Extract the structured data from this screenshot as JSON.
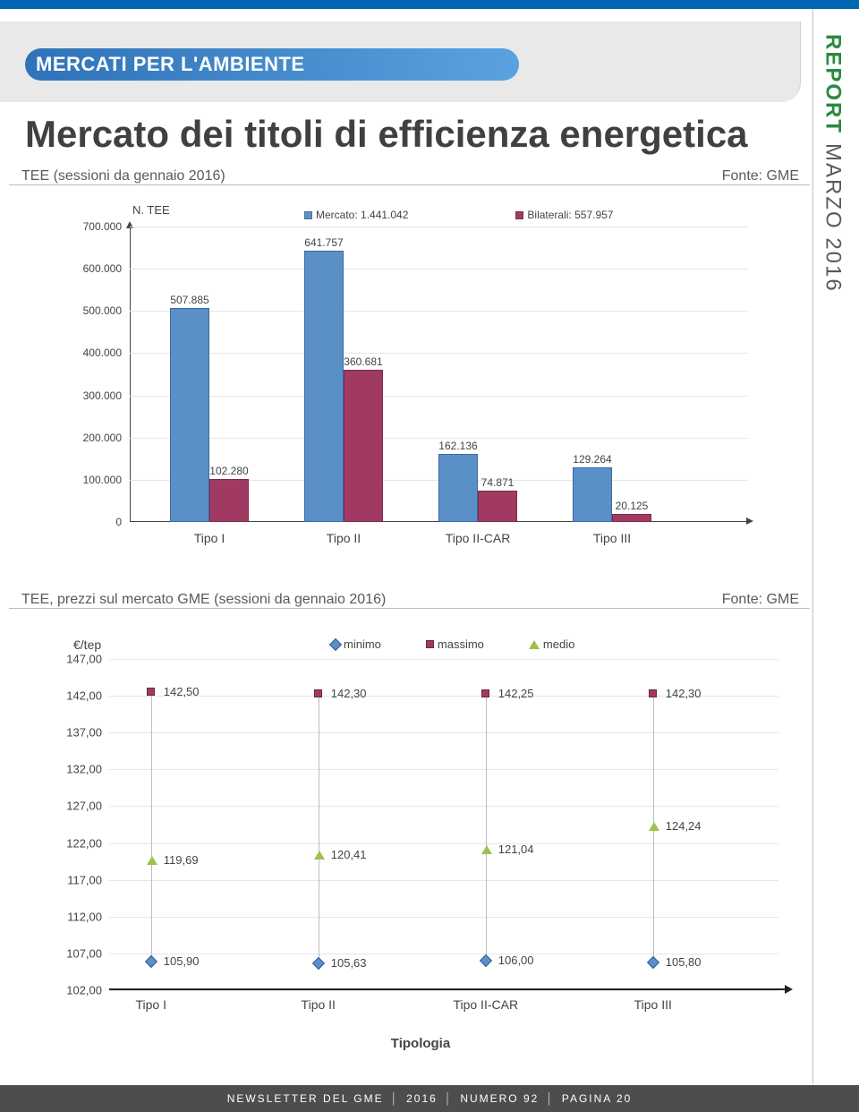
{
  "rail": {
    "report": "REPORT",
    "month": "MARZO 2016"
  },
  "ribbon": "MERCATI PER L'AMBIENTE",
  "title": "Mercato dei titoli di efficienza energetica",
  "chart1": {
    "title": "TEE (sessioni da gennaio 2016)",
    "source": "Fonte: GME",
    "axis_title": "N. TEE",
    "colors": {
      "mercato": "#5b8fc7",
      "bilaterali": "#a13a63",
      "grid": "#e6e6e6"
    },
    "legend": [
      {
        "label": "Mercato:  1.441.042",
        "color": "#5b8fc7"
      },
      {
        "label": "Bilaterali:  557.957",
        "color": "#a13a63"
      }
    ],
    "ylim": [
      0,
      700000
    ],
    "yticks": [
      {
        "v": 0,
        "label": "0"
      },
      {
        "v": 100000,
        "label": "100.000"
      },
      {
        "v": 200000,
        "label": "200.000"
      },
      {
        "v": 300000,
        "label": "300.000"
      },
      {
        "v": 400000,
        "label": "400.000"
      },
      {
        "v": 500000,
        "label": "500.000"
      },
      {
        "v": 600000,
        "label": "600.000"
      },
      {
        "v": 700000,
        "label": "700.000"
      }
    ],
    "categories": [
      "Tipo I",
      "Tipo II",
      "Tipo II-CAR",
      "Tipo III"
    ],
    "series": {
      "mercato": [
        507885,
        641757,
        162136,
        129264
      ],
      "bilaterali": [
        102280,
        360681,
        74871,
        20125
      ],
      "labels_mercato": [
        "507.885",
        "641.757",
        "162.136",
        "129.264"
      ],
      "labels_bilaterali": [
        "102.280",
        "360.681",
        "74.871",
        "20.125"
      ]
    }
  },
  "chart2": {
    "title": "TEE, prezzi sul mercato GME (sessioni da gennaio 2016)",
    "source": "Fonte: GME",
    "unit": "€/tep",
    "xlabel": "Tipologia",
    "colors": {
      "min": "#5b8fc7",
      "max": "#a13a63",
      "avg": "#9cc24a",
      "line": "#bdbdbd",
      "grid": "#e6e6e6"
    },
    "legend": [
      {
        "key": "min",
        "label": "minimo"
      },
      {
        "key": "max",
        "label": "massimo"
      },
      {
        "key": "avg",
        "label": "medio"
      }
    ],
    "ylim": [
      102,
      147
    ],
    "yticks": [
      {
        "v": 102,
        "label": "102,00"
      },
      {
        "v": 107,
        "label": "107,00"
      },
      {
        "v": 112,
        "label": "112,00"
      },
      {
        "v": 117,
        "label": "117,00"
      },
      {
        "v": 122,
        "label": "122,00"
      },
      {
        "v": 127,
        "label": "127,00"
      },
      {
        "v": 132,
        "label": "132,00"
      },
      {
        "v": 137,
        "label": "137,00"
      },
      {
        "v": 142,
        "label": "142,00"
      },
      {
        "v": 147,
        "label": "147,00"
      }
    ],
    "categories": [
      "Tipo I",
      "Tipo II",
      "Tipo II-CAR",
      "Tipo III"
    ],
    "points": [
      {
        "min": 105.9,
        "max": 142.5,
        "avg": 119.69,
        "min_l": "105,90",
        "max_l": "142,50",
        "avg_l": "119,69"
      },
      {
        "min": 105.63,
        "max": 142.3,
        "avg": 120.41,
        "min_l": "105,63",
        "max_l": "142,30",
        "avg_l": "120,41"
      },
      {
        "min": 106.0,
        "max": 142.25,
        "avg": 121.04,
        "min_l": "106,00",
        "max_l": "142,25",
        "avg_l": "121,04"
      },
      {
        "min": 105.8,
        "max": 142.3,
        "avg": 124.24,
        "min_l": "105,80",
        "max_l": "142,30",
        "avg_l": "124,24"
      }
    ]
  },
  "footer": {
    "newsletter": "NEWSLETTER DEL GME",
    "year": "2016",
    "num": "NUMERO 92",
    "page": "PAGINA 20"
  }
}
